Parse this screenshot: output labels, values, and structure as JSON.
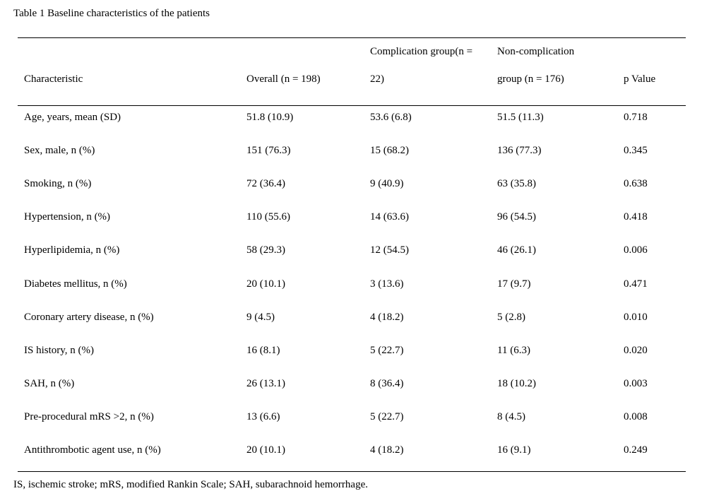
{
  "caption": "Table 1 Baseline characteristics of the patients",
  "header": {
    "characteristic": "Characteristic",
    "overall": "Overall (n = 198)",
    "complication_line1": "Complication group(n =",
    "complication_line2": "22)",
    "noncomplication_line1": "Non-complication",
    "noncomplication_line2": "group (n = 176)",
    "p_value": "p Value"
  },
  "rows": [
    {
      "characteristic": "Age, years, mean (SD)",
      "overall": "51.8 (10.9)",
      "complication": "53.6 (6.8)",
      "noncomplication": "51.5 (11.3)",
      "p": "0.718"
    },
    {
      "characteristic": "Sex, male, n (%)",
      "overall": "151 (76.3)",
      "complication": "15 (68.2)",
      "noncomplication": "136 (77.3)",
      "p": "0.345"
    },
    {
      "characteristic": "Smoking, n (%)",
      "overall": "72 (36.4)",
      "complication": "9 (40.9)",
      "noncomplication": "63 (35.8)",
      "p": "0.638"
    },
    {
      "characteristic": "Hypertension, n (%)",
      "overall": "110 (55.6)",
      "complication": "14 (63.6)",
      "noncomplication": "96 (54.5)",
      "p": "0.418"
    },
    {
      "characteristic": "Hyperlipidemia, n (%)",
      "overall": "58 (29.3)",
      "complication": "12 (54.5)",
      "noncomplication": "46 (26.1)",
      "p": "0.006"
    },
    {
      "characteristic": "Diabetes mellitus, n (%)",
      "overall": "20 (10.1)",
      "complication": "3 (13.6)",
      "noncomplication": "17 (9.7)",
      "p": "0.471"
    },
    {
      "characteristic": "Coronary artery disease, n (%)",
      "overall": "9 (4.5)",
      "complication": "4 (18.2)",
      "noncomplication": "5 (2.8)",
      "p": "0.010"
    },
    {
      "characteristic": "IS history, n (%)",
      "overall": "16 (8.1)",
      "complication": "5 (22.7)",
      "noncomplication": "11 (6.3)",
      "p": "0.020"
    },
    {
      "characteristic": "SAH, n (%)",
      "overall": "26 (13.1)",
      "complication": "8 (36.4)",
      "noncomplication": "18 (10.2)",
      "p": "0.003"
    },
    {
      "characteristic": "Pre-procedural mRS >2, n (%)",
      "overall": "13 (6.6)",
      "complication": "5 (22.7)",
      "noncomplication": "8 (4.5)",
      "p": "0.008"
    },
    {
      "characteristic": "Antithrombotic agent use, n (%)",
      "overall": "20 (10.1)",
      "complication": "4 (18.2)",
      "noncomplication": "16 (9.1)",
      "p": "0.249"
    }
  ],
  "footnote": "IS, ischemic stroke; mRS, modified Rankin Scale; SAH, subarachnoid hemorrhage."
}
